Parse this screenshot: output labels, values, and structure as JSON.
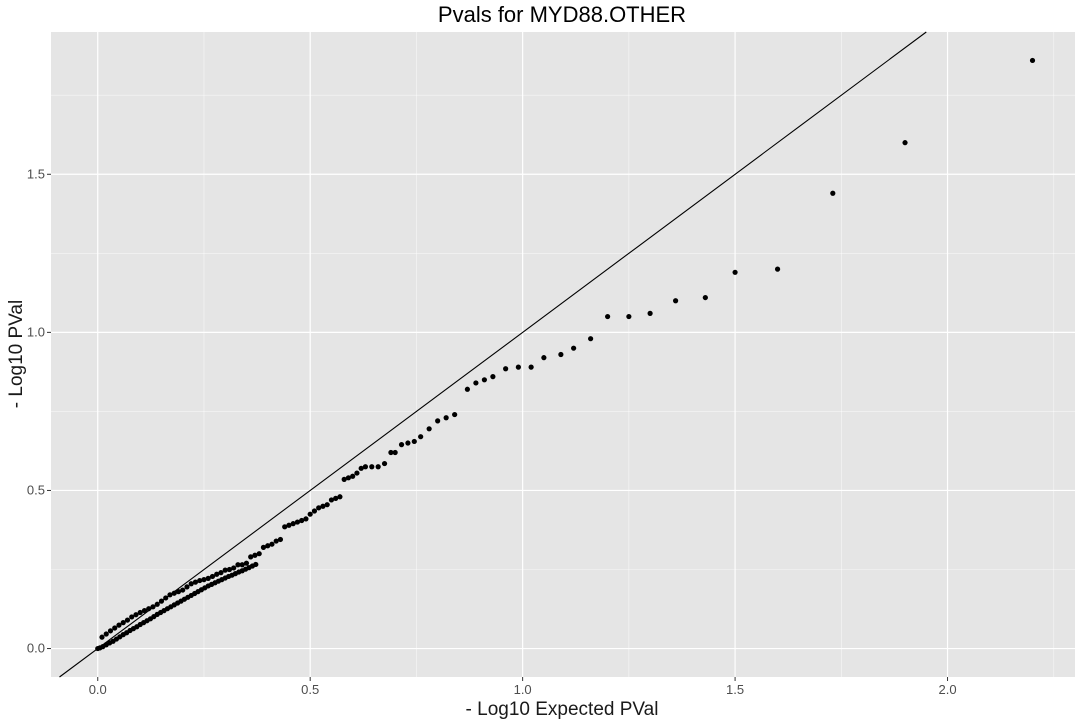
{
  "chart_data": {
    "type": "scatter",
    "title": "Pvals for MYD88.OTHER",
    "xlabel": "- Log10 Expected PVal",
    "ylabel": "- Log10 PVal",
    "xlim": [
      -0.11,
      2.3
    ],
    "ylim": [
      -0.09,
      1.95
    ],
    "x_ticks": [
      0.0,
      0.5,
      1.0,
      1.5,
      2.0
    ],
    "x_tick_labels": [
      "0.0",
      "0.5",
      "1.0",
      "1.5",
      "2.0"
    ],
    "y_ticks": [
      0.0,
      0.5,
      1.0,
      1.5
    ],
    "y_tick_labels": [
      "0.0",
      "0.5",
      "1.0",
      "1.5"
    ],
    "reference_line": {
      "intercept": 0,
      "slope": 1
    },
    "grid": true,
    "colors": {
      "panel": "#e5e5e5",
      "grid": "#ffffff",
      "point": "#000000",
      "line": "#000000"
    },
    "points": [
      [
        2.2,
        1.86
      ],
      [
        1.9,
        1.6
      ],
      [
        1.73,
        1.44
      ],
      [
        1.6,
        1.2
      ],
      [
        1.5,
        1.19
      ],
      [
        1.43,
        1.11
      ],
      [
        1.36,
        1.1
      ],
      [
        1.3,
        1.06
      ],
      [
        1.25,
        1.05
      ],
      [
        1.2,
        1.05
      ],
      [
        1.16,
        0.98
      ],
      [
        1.12,
        0.95
      ],
      [
        1.09,
        0.93
      ],
      [
        1.05,
        0.92
      ],
      [
        1.02,
        0.89
      ],
      [
        0.99,
        0.89
      ],
      [
        0.96,
        0.885
      ],
      [
        0.93,
        0.86
      ],
      [
        0.91,
        0.85
      ],
      [
        0.89,
        0.84
      ],
      [
        0.87,
        0.82
      ],
      [
        0.84,
        0.74
      ],
      [
        0.82,
        0.73
      ],
      [
        0.8,
        0.72
      ],
      [
        0.78,
        0.695
      ],
      [
        0.76,
        0.67
      ],
      [
        0.745,
        0.655
      ],
      [
        0.73,
        0.65
      ],
      [
        0.715,
        0.645
      ],
      [
        0.7,
        0.62
      ],
      [
        0.69,
        0.62
      ],
      [
        0.675,
        0.585
      ],
      [
        0.66,
        0.575
      ],
      [
        0.645,
        0.575
      ],
      [
        0.63,
        0.575
      ],
      [
        0.62,
        0.57
      ],
      [
        0.61,
        0.555
      ],
      [
        0.6,
        0.545
      ],
      [
        0.59,
        0.54
      ],
      [
        0.58,
        0.535
      ],
      [
        0.57,
        0.48
      ],
      [
        0.56,
        0.475
      ],
      [
        0.55,
        0.47
      ],
      [
        0.54,
        0.455
      ],
      [
        0.53,
        0.45
      ],
      [
        0.52,
        0.445
      ],
      [
        0.51,
        0.435
      ],
      [
        0.5,
        0.425
      ],
      [
        0.49,
        0.41
      ],
      [
        0.48,
        0.405
      ],
      [
        0.47,
        0.4
      ],
      [
        0.46,
        0.395
      ],
      [
        0.45,
        0.39
      ],
      [
        0.44,
        0.385
      ],
      [
        0.43,
        0.345
      ],
      [
        0.42,
        0.34
      ],
      [
        0.41,
        0.33
      ],
      [
        0.4,
        0.325
      ],
      [
        0.39,
        0.32
      ],
      [
        0.38,
        0.3
      ],
      [
        0.37,
        0.295
      ],
      [
        0.36,
        0.29
      ],
      [
        0.35,
        0.27
      ],
      [
        0.34,
        0.265
      ],
      [
        0.33,
        0.265
      ],
      [
        0.32,
        0.255
      ],
      [
        0.31,
        0.25
      ],
      [
        0.3,
        0.248
      ],
      [
        0.29,
        0.24
      ],
      [
        0.28,
        0.235
      ],
      [
        0.27,
        0.228
      ],
      [
        0.26,
        0.222
      ],
      [
        0.25,
        0.218
      ],
      [
        0.24,
        0.215
      ],
      [
        0.23,
        0.21
      ],
      [
        0.22,
        0.205
      ],
      [
        0.21,
        0.195
      ],
      [
        0.2,
        0.185
      ],
      [
        0.19,
        0.18
      ],
      [
        0.18,
        0.175
      ],
      [
        0.17,
        0.17
      ],
      [
        0.16,
        0.16
      ],
      [
        0.15,
        0.15
      ],
      [
        0.14,
        0.14
      ],
      [
        0.13,
        0.132
      ],
      [
        0.12,
        0.126
      ],
      [
        0.11,
        0.12
      ],
      [
        0.1,
        0.114
      ],
      [
        0.09,
        0.107
      ],
      [
        0.08,
        0.1
      ],
      [
        0.07,
        0.09
      ],
      [
        0.06,
        0.082
      ],
      [
        0.05,
        0.074
      ],
      [
        0.04,
        0.065
      ],
      [
        0.03,
        0.056
      ],
      [
        0.02,
        0.046
      ],
      [
        0.01,
        0.036
      ],
      [
        0.0,
        0.0
      ],
      [
        0.005,
        0.002
      ],
      [
        0.012,
        0.006
      ],
      [
        0.02,
        0.012
      ],
      [
        0.028,
        0.018
      ],
      [
        0.036,
        0.023
      ],
      [
        0.044,
        0.03
      ],
      [
        0.052,
        0.037
      ],
      [
        0.06,
        0.044
      ],
      [
        0.068,
        0.05
      ],
      [
        0.076,
        0.057
      ],
      [
        0.084,
        0.063
      ],
      [
        0.092,
        0.069
      ],
      [
        0.1,
        0.076
      ],
      [
        0.108,
        0.082
      ],
      [
        0.116,
        0.088
      ],
      [
        0.124,
        0.094
      ],
      [
        0.132,
        0.101
      ],
      [
        0.14,
        0.108
      ],
      [
        0.148,
        0.114
      ],
      [
        0.156,
        0.12
      ],
      [
        0.164,
        0.126
      ],
      [
        0.172,
        0.132
      ],
      [
        0.18,
        0.138
      ],
      [
        0.188,
        0.144
      ],
      [
        0.196,
        0.15
      ],
      [
        0.204,
        0.156
      ],
      [
        0.212,
        0.162
      ],
      [
        0.22,
        0.168
      ],
      [
        0.228,
        0.174
      ],
      [
        0.236,
        0.18
      ],
      [
        0.244,
        0.186
      ],
      [
        0.252,
        0.192
      ],
      [
        0.26,
        0.198
      ],
      [
        0.268,
        0.203
      ],
      [
        0.276,
        0.208
      ],
      [
        0.284,
        0.213
      ],
      [
        0.292,
        0.218
      ],
      [
        0.3,
        0.223
      ],
      [
        0.308,
        0.228
      ],
      [
        0.316,
        0.232
      ],
      [
        0.324,
        0.237
      ],
      [
        0.332,
        0.242
      ],
      [
        0.34,
        0.246
      ],
      [
        0.348,
        0.251
      ],
      [
        0.356,
        0.256
      ],
      [
        0.364,
        0.261
      ],
      [
        0.372,
        0.266
      ]
    ]
  }
}
